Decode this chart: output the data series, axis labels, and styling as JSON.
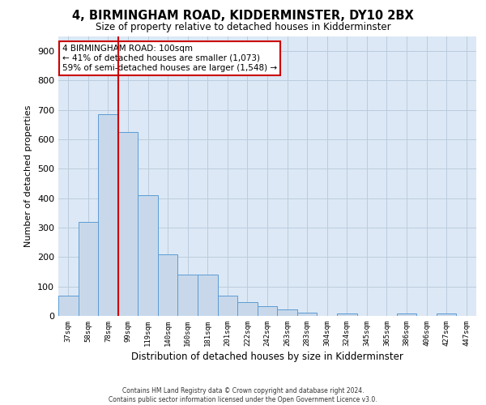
{
  "title": "4, BIRMINGHAM ROAD, KIDDERMINSTER, DY10 2BX",
  "subtitle": "Size of property relative to detached houses in Kidderminster",
  "xlabel": "Distribution of detached houses by size in Kidderminster",
  "ylabel": "Number of detached properties",
  "categories": [
    "37sqm",
    "58sqm",
    "78sqm",
    "99sqm",
    "119sqm",
    "140sqm",
    "160sqm",
    "181sqm",
    "201sqm",
    "222sqm",
    "242sqm",
    "263sqm",
    "283sqm",
    "304sqm",
    "324sqm",
    "345sqm",
    "365sqm",
    "386sqm",
    "406sqm",
    "427sqm",
    "447sqm"
  ],
  "values": [
    70,
    320,
    685,
    625,
    410,
    210,
    140,
    140,
    70,
    48,
    33,
    22,
    12,
    0,
    7,
    0,
    0,
    7,
    0,
    7,
    0
  ],
  "bar_color": "#c8d8ea",
  "bar_edge_color": "#5b9bd5",
  "red_line_index": 3,
  "annotation_title": "4 BIRMINGHAM ROAD: 100sqm",
  "annotation_line1": "← 41% of detached houses are smaller (1,073)",
  "annotation_line2": "59% of semi-detached houses are larger (1,548) →",
  "annotation_box_color": "#ffffff",
  "annotation_border_color": "#cc0000",
  "red_line_color": "#cc0000",
  "ylim": [
    0,
    950
  ],
  "yticks": [
    0,
    100,
    200,
    300,
    400,
    500,
    600,
    700,
    800,
    900
  ],
  "bg_color": "#dce8f5",
  "background_color": "#ffffff",
  "grid_color": "#bbccdd",
  "footer_line1": "Contains HM Land Registry data © Crown copyright and database right 2024.",
  "footer_line2": "Contains public sector information licensed under the Open Government Licence v3.0."
}
